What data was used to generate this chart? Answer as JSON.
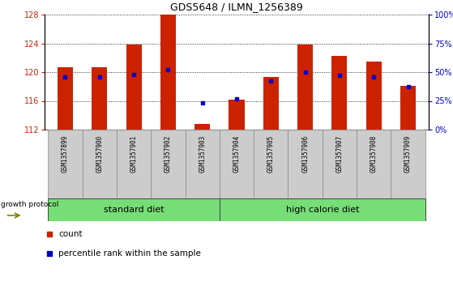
{
  "title": "GDS5648 / ILMN_1256389",
  "samples": [
    "GSM1357899",
    "GSM1357900",
    "GSM1357901",
    "GSM1357902",
    "GSM1357903",
    "GSM1357904",
    "GSM1357905",
    "GSM1357906",
    "GSM1357907",
    "GSM1357908",
    "GSM1357909"
  ],
  "counts": [
    120.7,
    120.7,
    123.8,
    128.0,
    112.8,
    116.2,
    119.3,
    123.8,
    122.2,
    121.5,
    118.1
  ],
  "percentile_ranks": [
    46,
    46,
    48,
    52,
    23,
    27,
    42,
    50,
    47,
    46,
    37
  ],
  "ylim_left": [
    112,
    128
  ],
  "ylim_right": [
    0,
    100
  ],
  "yticks_left": [
    112,
    116,
    120,
    124,
    128
  ],
  "yticks_right": [
    0,
    25,
    50,
    75,
    100
  ],
  "bar_color": "#cc2200",
  "dot_color": "#0000cc",
  "bar_bottom": 112,
  "standard_diet_label": "standard diet",
  "high_calorie_label": "high calorie diet",
  "growth_protocol_label": "growth protocol",
  "legend_count_label": "count",
  "legend_percentile_label": "percentile rank within the sample",
  "tick_color_left": "#cc2200",
  "tick_color_right": "#0000cc",
  "sample_box_color": "#cccccc",
  "diet_box_color": "#77dd77",
  "arrow_color": "#808000",
  "fig_width": 5.59,
  "fig_height": 3.63,
  "dpi": 100
}
